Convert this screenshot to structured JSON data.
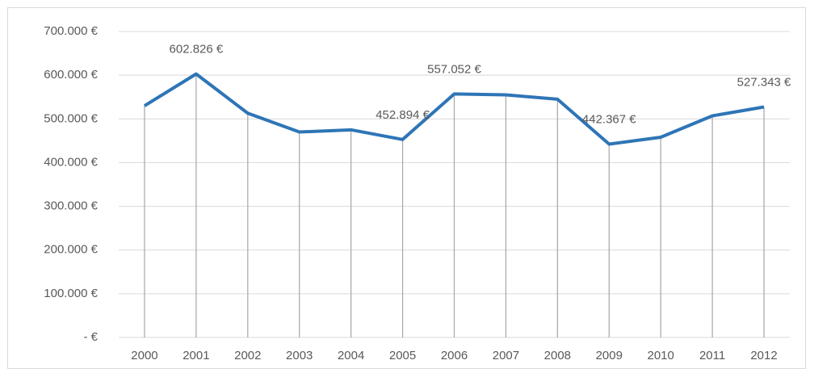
{
  "chart_data": {
    "type": "line",
    "categories": [
      "2000",
      "2001",
      "2002",
      "2003",
      "2004",
      "2005",
      "2006",
      "2007",
      "2008",
      "2009",
      "2010",
      "2011",
      "2012"
    ],
    "series": [
      {
        "name": null,
        "color": "#2e75b6",
        "values": [
          530000,
          602826,
          513000,
          470000,
          475000,
          452894,
          557052,
          555000,
          545000,
          442367,
          458000,
          507000,
          527343
        ],
        "value_labels": [
          null,
          "602.826 €",
          null,
          null,
          null,
          "452.894 €",
          "557.052 €",
          null,
          null,
          "442.367 €",
          null,
          null,
          "527.343 €"
        ]
      }
    ],
    "ylim": [
      0,
      700000
    ],
    "yticks": [
      {
        "value": 0,
        "label": "-  €"
      },
      {
        "value": 100000,
        "label": "100.000 €"
      },
      {
        "value": 200000,
        "label": "200.000 €"
      },
      {
        "value": 300000,
        "label": "300.000 €"
      },
      {
        "value": 400000,
        "label": "400.000 €"
      },
      {
        "value": 500000,
        "label": "500.000 €"
      },
      {
        "value": 600000,
        "label": "600.000 €"
      },
      {
        "value": 700000,
        "label": "700.000 €"
      }
    ],
    "grid": true,
    "drop_lines": true
  }
}
